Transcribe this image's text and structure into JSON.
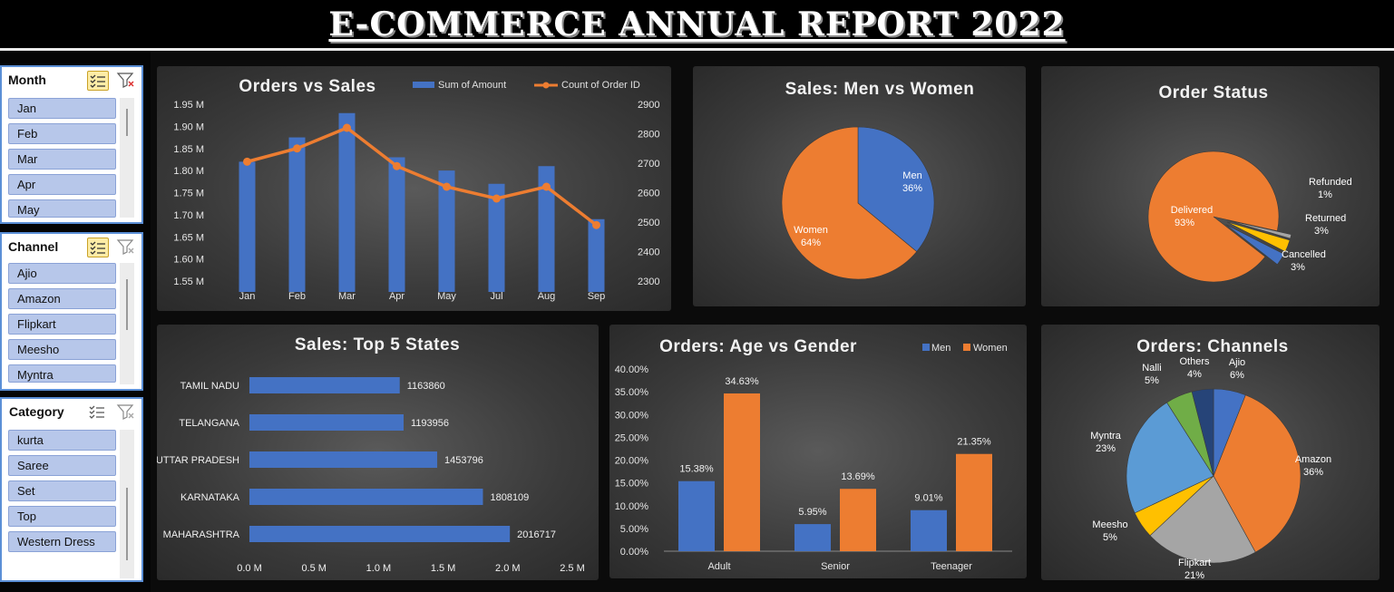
{
  "report": {
    "title": "E-COMMERCE ANNUAL REPORT 2022"
  },
  "slicers": [
    {
      "label": "Month",
      "items": [
        "Jan",
        "Feb",
        "Mar",
        "Apr",
        "May"
      ]
    },
    {
      "label": "Channel",
      "items": [
        "Ajio",
        "Amazon",
        "Flipkart",
        "Meesho",
        "Myntra"
      ]
    },
    {
      "label": "Category",
      "items": [
        "kurta",
        "Saree",
        "Set",
        "Top",
        "Western Dress"
      ]
    }
  ],
  "colors": {
    "blue": "#4472c4",
    "orange": "#ed7d31",
    "gray": "#a5a5a5",
    "gold": "#ffc000",
    "lightblue": "#5b9bd5",
    "green": "#70ad47",
    "navy": "#264478"
  },
  "chart_data": [
    {
      "id": "orders_vs_sales",
      "type": "bar",
      "title": "Orders vs Sales",
      "categories": [
        "Jan",
        "Feb",
        "Mar",
        "Apr",
        "May",
        "Jul",
        "Aug",
        "Sep"
      ],
      "series": [
        {
          "name": "Sum of Amount",
          "type": "bar",
          "axis": "left",
          "values": [
            1.82,
            1.875,
            1.93,
            1.83,
            1.8,
            1.77,
            1.81,
            1.69
          ]
        },
        {
          "name": "Count of Order ID",
          "type": "line",
          "axis": "right",
          "values": [
            2705,
            2750,
            2820,
            2690,
            2620,
            2580,
            2620,
            2490
          ]
        }
      ],
      "ylim": [
        1.55,
        1.95
      ],
      "y_ticks": [
        "1.55 M",
        "1.60 M",
        "1.65 M",
        "1.70 M",
        "1.75 M",
        "1.80 M",
        "1.85 M",
        "1.90 M",
        "1.95 M"
      ],
      "y2lim": [
        2300,
        2900
      ],
      "y2_ticks": [
        "2300",
        "2400",
        "2500",
        "2600",
        "2700",
        "2800",
        "2900"
      ],
      "legend": "top-right"
    },
    {
      "id": "sales_men_women",
      "type": "pie",
      "title": "Sales: Men vs Women",
      "slices": [
        {
          "label": "Men",
          "value": 36,
          "text": "36%"
        },
        {
          "label": "Women",
          "value": 64,
          "text": "64%"
        }
      ]
    },
    {
      "id": "order_status",
      "type": "pie",
      "title": "Order Status",
      "slices": [
        {
          "label": "Delivered",
          "value": 93,
          "text": "93%"
        },
        {
          "label": "Refunded",
          "value": 1,
          "text": "1%"
        },
        {
          "label": "Returned",
          "value": 3,
          "text": "3%"
        },
        {
          "label": "Cancelled",
          "value": 3,
          "text": "3%"
        }
      ]
    },
    {
      "id": "sales_top5_states",
      "type": "bar",
      "orientation": "horizontal",
      "title": "Sales: Top 5 States",
      "categories": [
        "TAMIL NADU",
        "TELANGANA",
        "UTTAR PRADESH",
        "KARNATAKA",
        "MAHARASHTRA"
      ],
      "values": [
        1163860,
        1193956,
        1453796,
        1808109,
        2016717
      ],
      "xlim": [
        0,
        2500000
      ],
      "x_ticks": [
        "0.0 M",
        "0.5 M",
        "1.0 M",
        "1.5 M",
        "2.0 M",
        "2.5 M"
      ]
    },
    {
      "id": "orders_age_gender",
      "type": "bar",
      "title": "Orders: Age vs Gender",
      "categories": [
        "Adult",
        "Senior",
        "Teenager"
      ],
      "series": [
        {
          "name": "Men",
          "values": [
            15.38,
            5.95,
            9.01
          ],
          "labels": [
            "15.38%",
            "5.95%",
            "9.01%"
          ]
        },
        {
          "name": "Women",
          "values": [
            34.63,
            13.69,
            21.35
          ],
          "labels": [
            "34.63%",
            "13.69%",
            "21.35%"
          ]
        }
      ],
      "ylim": [
        0,
        40
      ],
      "y_ticks": [
        "0.00%",
        "5.00%",
        "10.00%",
        "15.00%",
        "20.00%",
        "25.00%",
        "30.00%",
        "35.00%",
        "40.00%"
      ],
      "legend": "top-right"
    },
    {
      "id": "orders_channels",
      "type": "pie",
      "title": "Orders: Channels",
      "slices": [
        {
          "label": "Ajio",
          "value": 6,
          "text": "6%"
        },
        {
          "label": "Amazon",
          "value": 36,
          "text": "36%"
        },
        {
          "label": "Flipkart",
          "value": 21,
          "text": "21%"
        },
        {
          "label": "Meesho",
          "value": 5,
          "text": "5%"
        },
        {
          "label": "Myntra",
          "value": 23,
          "text": "23%"
        },
        {
          "label": "Nalli",
          "value": 5,
          "text": "5%"
        },
        {
          "label": "Others",
          "value": 4,
          "text": "4%"
        }
      ]
    }
  ]
}
